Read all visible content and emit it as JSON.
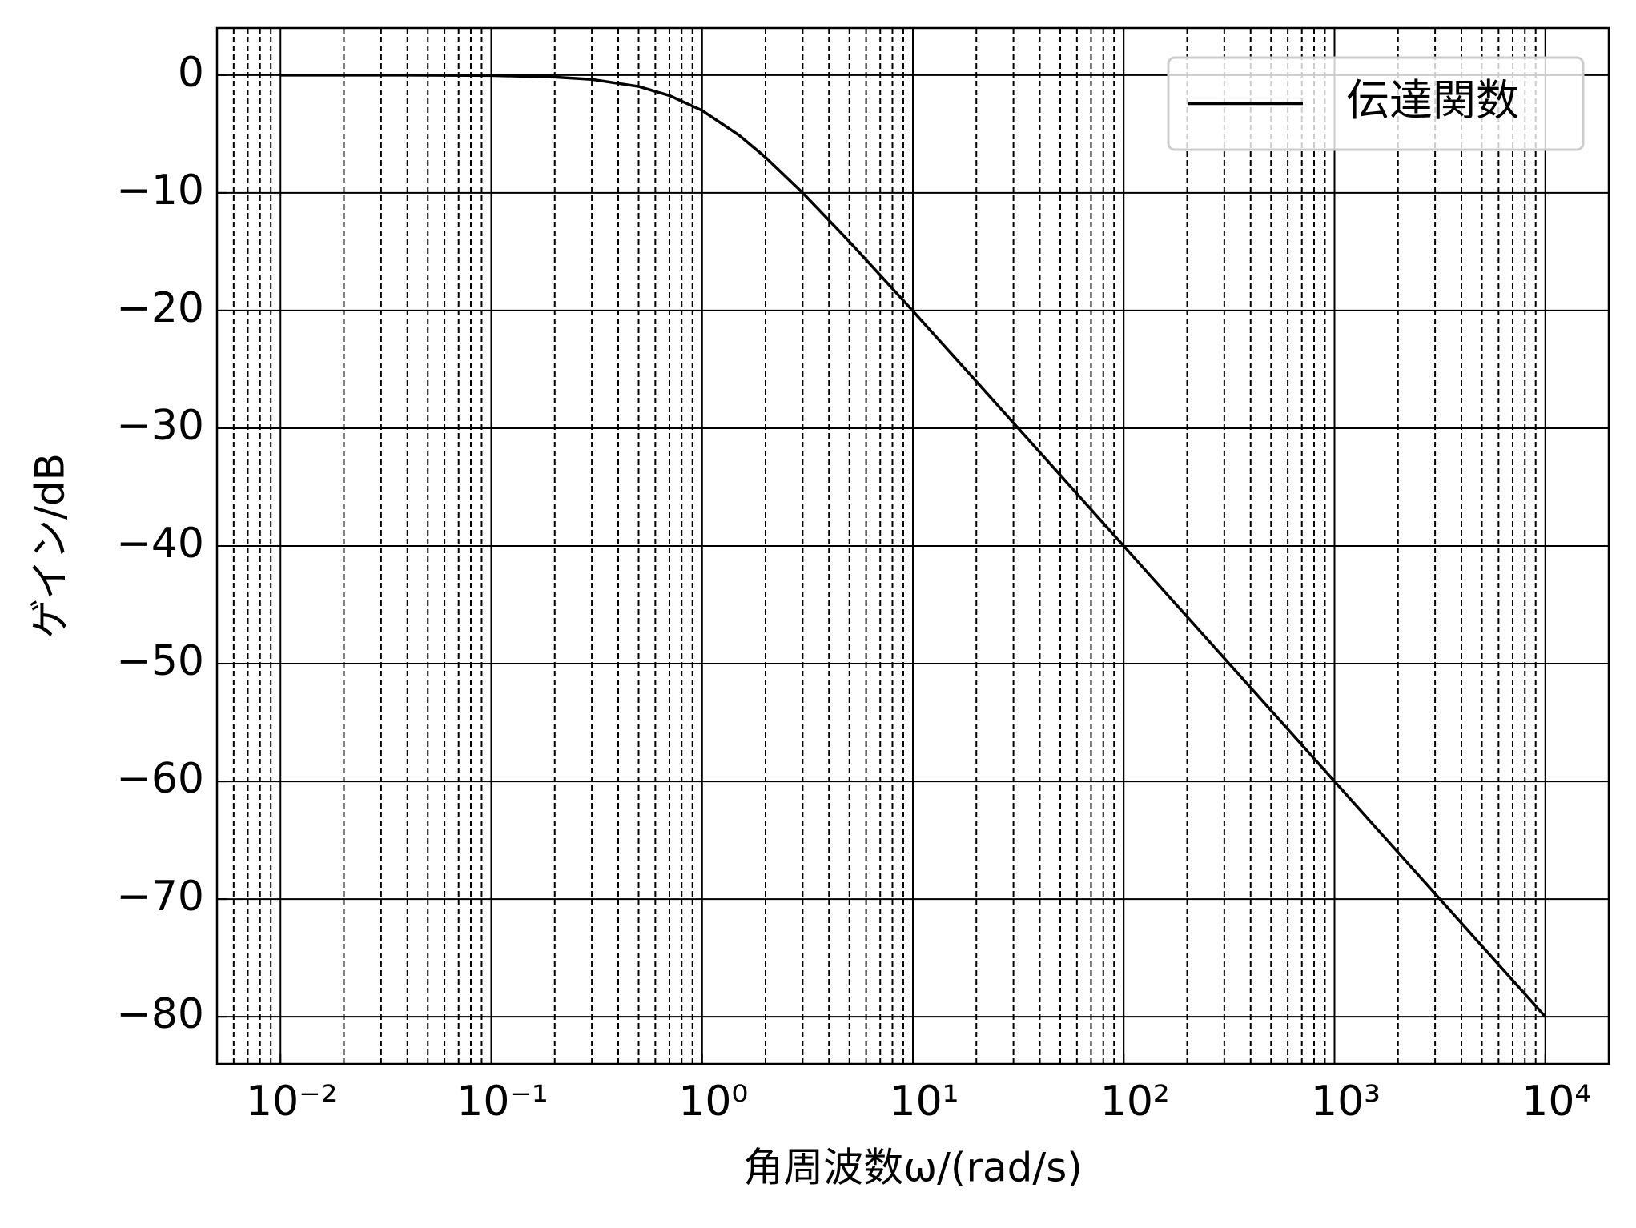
{
  "chart_data": {
    "type": "line",
    "xlabel": "角周波数ω/(rad/s)",
    "ylabel": "ゲイン/dB",
    "x": [
      0.01,
      0.02,
      0.05,
      0.1,
      0.2,
      0.3,
      0.5,
      0.7,
      1,
      1.5,
      2,
      3,
      5,
      7,
      10,
      20,
      50,
      100,
      200,
      500,
      1000,
      2000,
      5000,
      10000
    ],
    "series": [
      {
        "name": "伝達関数",
        "color": "#000000",
        "values": [
          0,
          0,
          -0.01,
          -0.04,
          -0.17,
          -0.37,
          -0.97,
          -1.74,
          -3.01,
          -5.12,
          -6.99,
          -10,
          -14.15,
          -17.0,
          -20.04,
          -26.03,
          -33.98,
          -40,
          -46.02,
          -53.98,
          -60,
          -66.02,
          -73.98,
          -80
        ]
      }
    ],
    "xscale": "log",
    "xlim": [
      0.005,
      20000
    ],
    "ylim": [
      -84,
      4
    ],
    "xticks": [
      {
        "value": 0.01,
        "label": "10⁻²"
      },
      {
        "value": 0.1,
        "label": "10⁻¹"
      },
      {
        "value": 1,
        "label": "10⁰"
      },
      {
        "value": 10,
        "label": "10¹"
      },
      {
        "value": 100,
        "label": "10²"
      },
      {
        "value": 1000,
        "label": "10³"
      },
      {
        "value": 10000,
        "label": "10⁴"
      }
    ],
    "yticks": [
      0,
      {
        "value": -10,
        "label": "−10"
      },
      {
        "value": -20,
        "label": "−20"
      },
      {
        "value": -30,
        "label": "−30"
      },
      {
        "value": -40,
        "label": "−40"
      },
      {
        "value": -50,
        "label": "−50"
      },
      {
        "value": -60,
        "label": "−60"
      },
      {
        "value": -70,
        "label": "−70"
      },
      {
        "value": -80,
        "label": "−80"
      }
    ],
    "grid": true,
    "minor_grid": true,
    "legend": "upper right"
  }
}
